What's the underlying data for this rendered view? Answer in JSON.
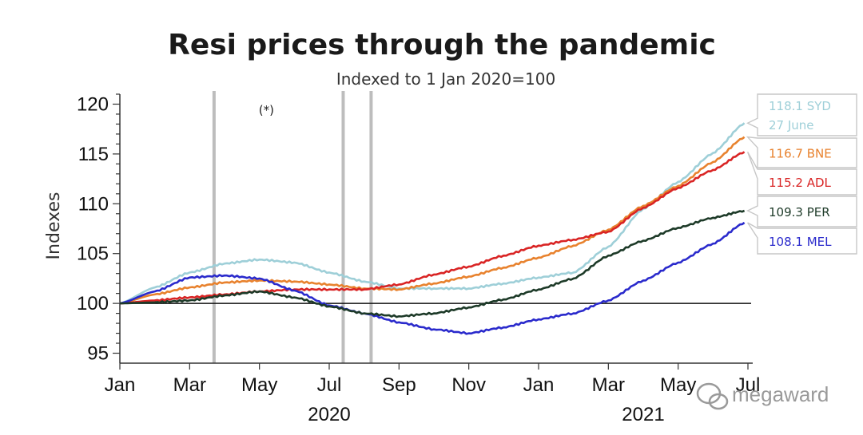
{
  "chart_data": {
    "type": "line",
    "title": "Resi prices through the pandemic",
    "subtitle": "Indexed to 1 Jan 2020=100",
    "ylabel": "Indexes",
    "ylim": [
      94,
      121
    ],
    "yticks": [
      95,
      100,
      105,
      110,
      115,
      120
    ],
    "xlim": [
      0,
      18
    ],
    "xticks": [
      {
        "x": 0,
        "label": "Jan"
      },
      {
        "x": 2,
        "label": "Mar"
      },
      {
        "x": 4,
        "label": "May"
      },
      {
        "x": 6,
        "label": "Jul"
      },
      {
        "x": 8,
        "label": "Sep"
      },
      {
        "x": 10,
        "label": "Nov"
      },
      {
        "x": 12,
        "label": "Jan"
      },
      {
        "x": 14,
        "label": "Mar"
      },
      {
        "x": 16,
        "label": "May"
      },
      {
        "x": 18,
        "label": "Jul"
      }
    ],
    "year_labels": [
      {
        "x": 6,
        "label": "2020"
      },
      {
        "x": 15,
        "label": "2021"
      }
    ],
    "reference_line": 100,
    "vertical_lines": [
      2.7,
      6.4,
      7.2
    ],
    "marker_note": {
      "x": 4.2,
      "label": "(*)"
    },
    "legend": "end-of-line labels",
    "series": [
      {
        "code": "SYD",
        "color": "#9ecfd8",
        "end_label": "118.1 SYD",
        "end_label2": "27 June",
        "points": [
          [
            0,
            100
          ],
          [
            1,
            101.6
          ],
          [
            2,
            103.1
          ],
          [
            3,
            104
          ],
          [
            4,
            104.4
          ],
          [
            5,
            104.1
          ],
          [
            6,
            103.1
          ],
          [
            7,
            102.2
          ],
          [
            8,
            101.5
          ],
          [
            9,
            101.5
          ],
          [
            10,
            101.5
          ],
          [
            11,
            102
          ],
          [
            12,
            102.6
          ],
          [
            13,
            103.1
          ],
          [
            14,
            105.7
          ],
          [
            15,
            109.5
          ],
          [
            16,
            112.2
          ],
          [
            17,
            115.1
          ],
          [
            17.9,
            118.1
          ]
        ]
      },
      {
        "code": "BNE",
        "color": "#e8822e",
        "end_label": "116.7 BNE",
        "points": [
          [
            0,
            100
          ],
          [
            1,
            100.9
          ],
          [
            2,
            101.6
          ],
          [
            3,
            102.1
          ],
          [
            4,
            102.3
          ],
          [
            5,
            102.2
          ],
          [
            6,
            101.9
          ],
          [
            7,
            101.5
          ],
          [
            8,
            101.4
          ],
          [
            9,
            102
          ],
          [
            10,
            102.7
          ],
          [
            11,
            103.6
          ],
          [
            12,
            104.6
          ],
          [
            13,
            105.8
          ],
          [
            14,
            107.4
          ],
          [
            15,
            109.8
          ],
          [
            16,
            111.8
          ],
          [
            17,
            114.2
          ],
          [
            17.9,
            116.7
          ]
        ]
      },
      {
        "code": "ADL",
        "color": "#d92424",
        "end_label": "115.2 ADL",
        "points": [
          [
            0,
            100
          ],
          [
            1,
            100.3
          ],
          [
            2,
            100.6
          ],
          [
            3,
            100.9
          ],
          [
            4,
            101.2
          ],
          [
            5,
            101.4
          ],
          [
            6,
            101.4
          ],
          [
            7,
            101.4
          ],
          [
            8,
            101.9
          ],
          [
            9,
            102.9
          ],
          [
            10,
            103.7
          ],
          [
            11,
            104.8
          ],
          [
            12,
            105.8
          ],
          [
            13,
            106.4
          ],
          [
            14,
            107.2
          ],
          [
            15,
            109.6
          ],
          [
            16,
            111.6
          ],
          [
            17,
            113.4
          ],
          [
            17.9,
            115.2
          ]
        ]
      },
      {
        "code": "PER",
        "color": "#1d3a28",
        "end_label": "109.3 PER",
        "points": [
          [
            0,
            100
          ],
          [
            1,
            100.1
          ],
          [
            2,
            100.3
          ],
          [
            3,
            100.8
          ],
          [
            4,
            101.2
          ],
          [
            5,
            100.6
          ],
          [
            6,
            99.7
          ],
          [
            7,
            99
          ],
          [
            8,
            98.7
          ],
          [
            9,
            99
          ],
          [
            10,
            99.6
          ],
          [
            11,
            100.4
          ],
          [
            12,
            101.4
          ],
          [
            13,
            102.5
          ],
          [
            14,
            104.8
          ],
          [
            15,
            106.3
          ],
          [
            16,
            107.6
          ],
          [
            17,
            108.6
          ],
          [
            17.9,
            109.3
          ]
        ]
      },
      {
        "code": "MEL",
        "color": "#2a2acc",
        "end_label": "108.1 MEL",
        "points": [
          [
            0,
            100
          ],
          [
            1,
            101.2
          ],
          [
            2,
            102.6
          ],
          [
            3,
            102.8
          ],
          [
            4,
            102.5
          ],
          [
            5,
            101.3
          ],
          [
            6,
            99.8
          ],
          [
            7,
            99
          ],
          [
            8,
            98.1
          ],
          [
            9,
            97.4
          ],
          [
            10,
            97
          ],
          [
            11,
            97.6
          ],
          [
            12,
            98.4
          ],
          [
            13,
            99
          ],
          [
            14,
            100.3
          ],
          [
            15,
            102.3
          ],
          [
            16,
            104.1
          ],
          [
            17,
            106
          ],
          [
            17.9,
            108.1
          ]
        ]
      }
    ]
  },
  "watermark": "megaward"
}
